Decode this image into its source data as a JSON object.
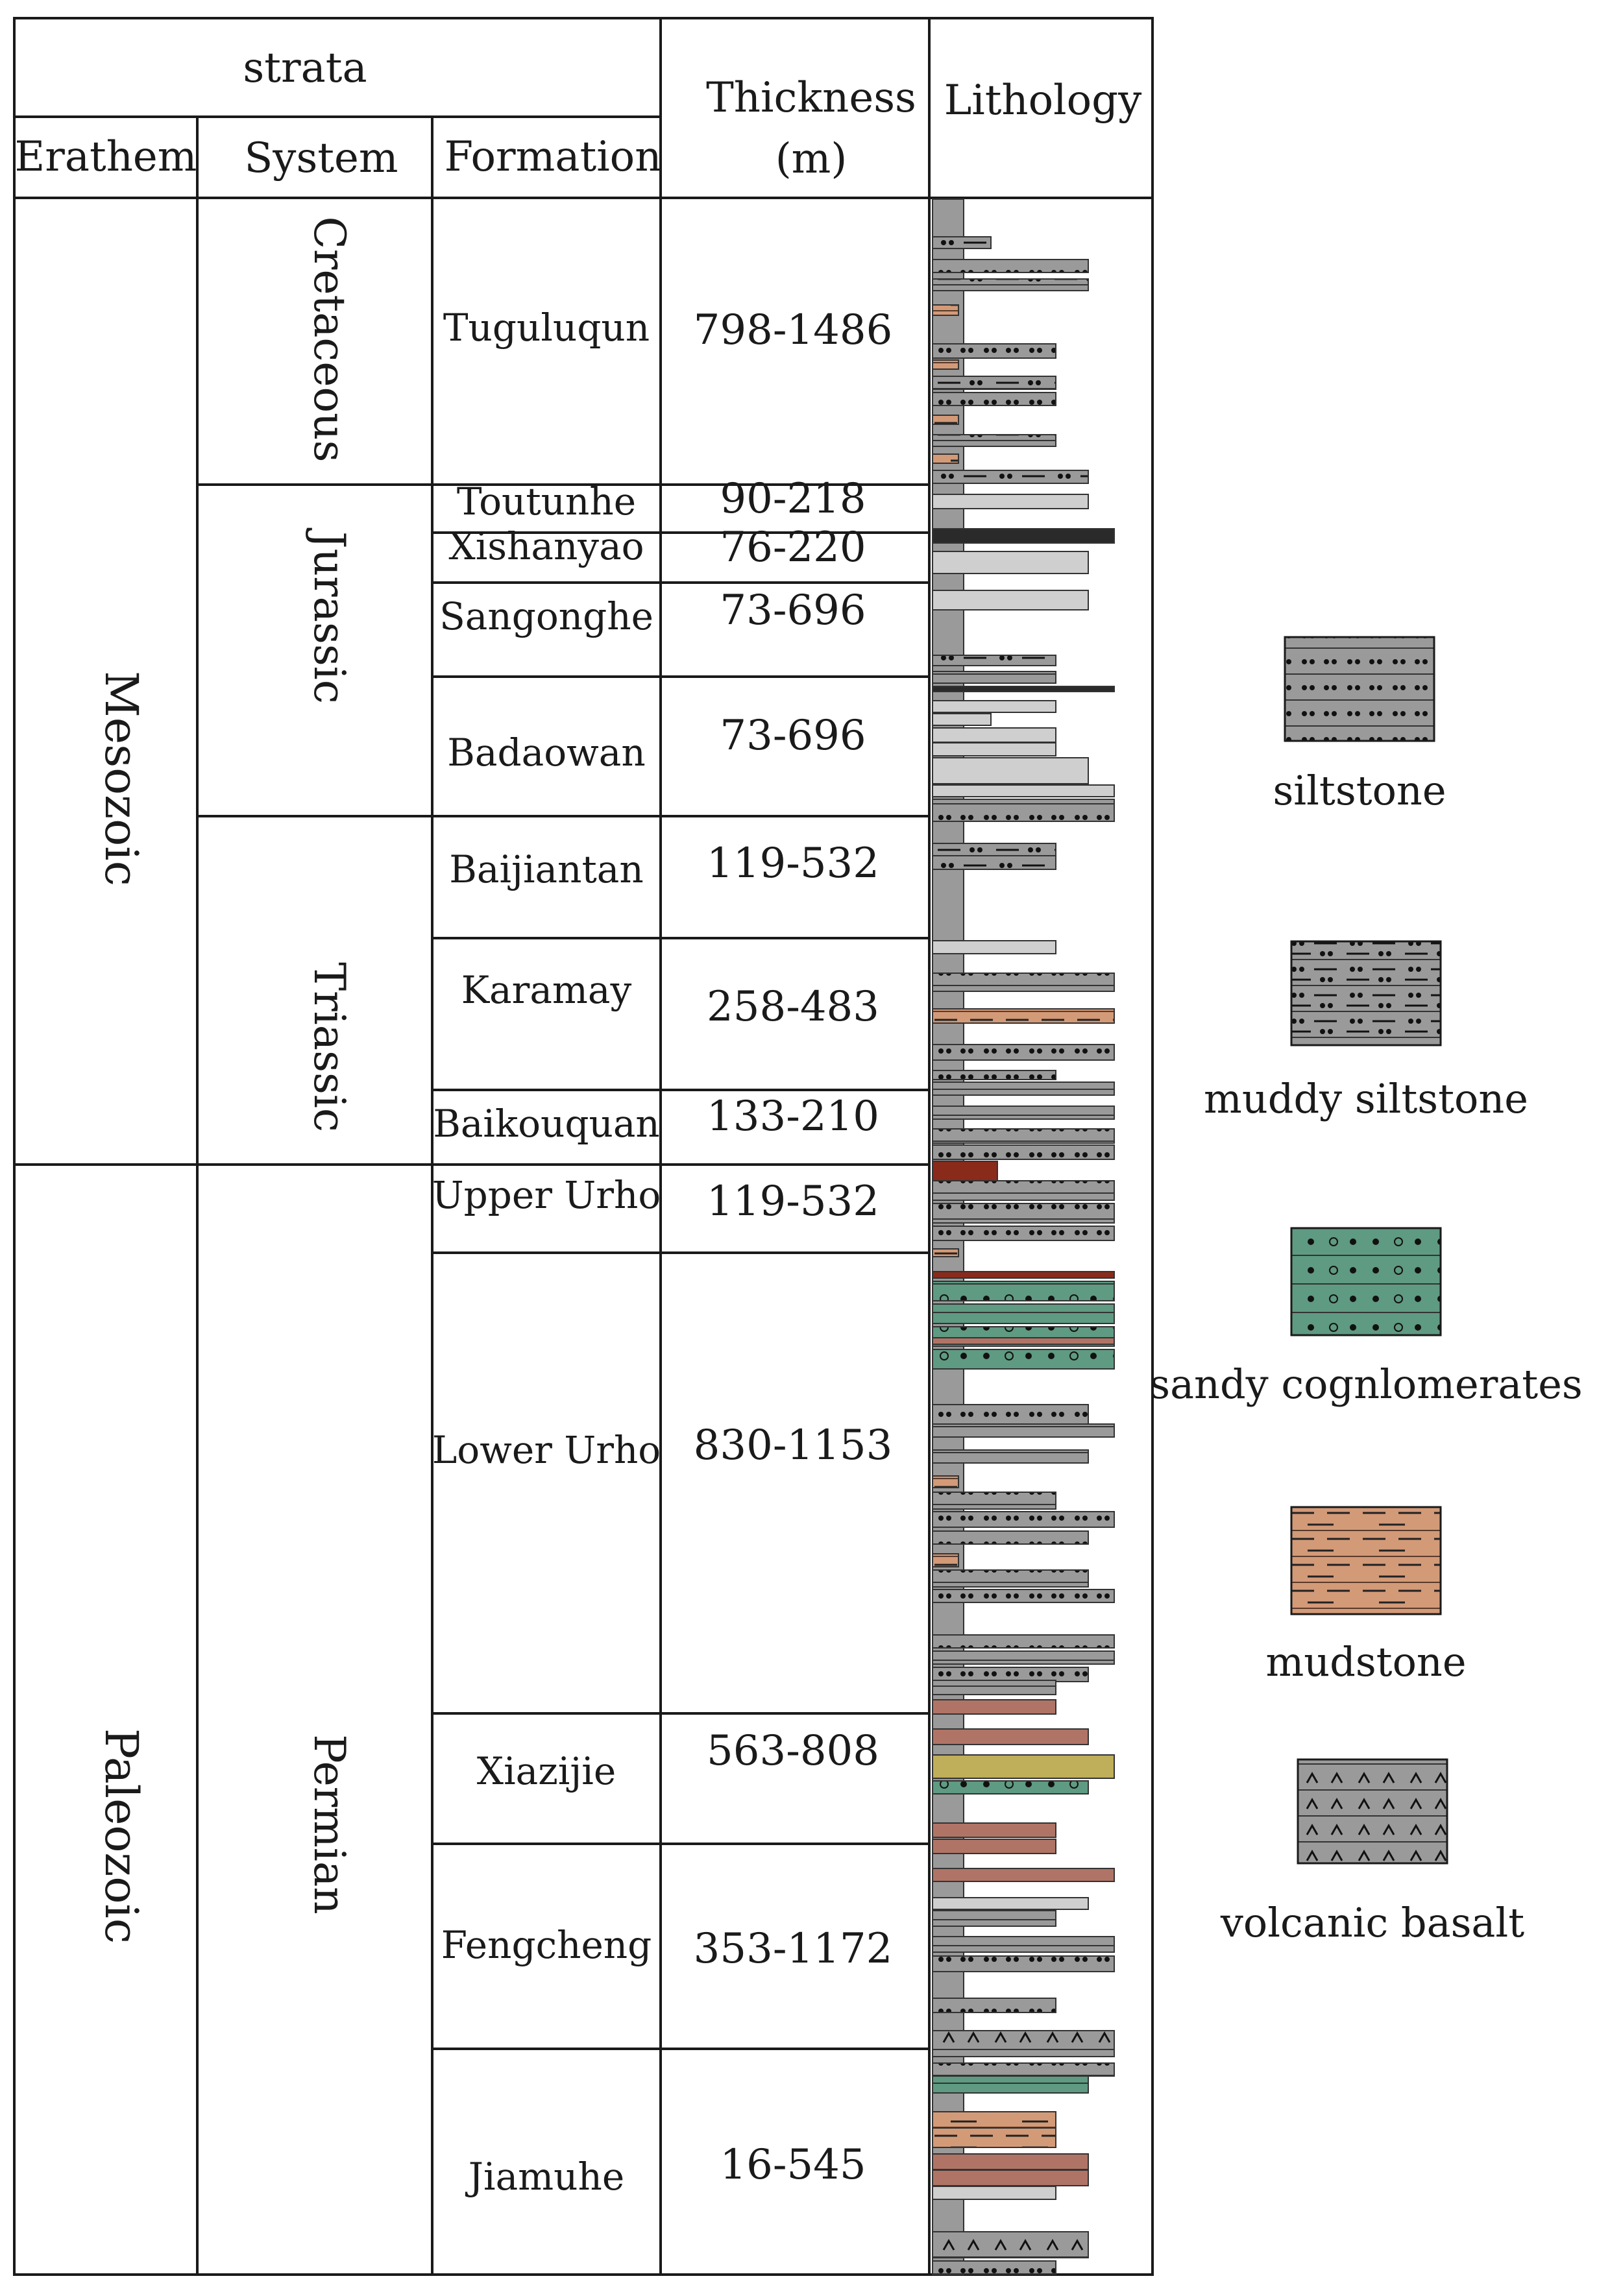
{
  "headers": {
    "strata": "strata",
    "erathem": "Erathem",
    "system": "System",
    "formation": "Formation",
    "thickness_line1": "Thickness",
    "thickness_line2": "(m)",
    "lithology": "Lithology"
  },
  "erathems": [
    {
      "name": "Mesozoic"
    },
    {
      "name": "Paleozoic"
    }
  ],
  "systems": [
    {
      "name": "Cretaceous"
    },
    {
      "name": "Jurassic"
    },
    {
      "name": "Triassic"
    },
    {
      "name": "Permian"
    }
  ],
  "formations": [
    {
      "name": "Tuguluqun",
      "thickness": "798-1486"
    },
    {
      "name": "Toutunhe",
      "thickness": "90-218"
    },
    {
      "name": "Xishanyao",
      "thickness": "76-220"
    },
    {
      "name": "Sangonghe",
      "thickness": "73-696"
    },
    {
      "name": "Badaowan",
      "thickness": "73-696"
    },
    {
      "name": "Baijiantan",
      "thickness": "119-532"
    },
    {
      "name": "Karamay",
      "thickness": "258-483"
    },
    {
      "name": "Baikouquan",
      "thickness": "133-210"
    },
    {
      "name": "Upper Urho",
      "thickness": "119-532"
    },
    {
      "name": "Lower Urho",
      "thickness": "830-1153"
    },
    {
      "name": "Xiazijie",
      "thickness": "563-808"
    },
    {
      "name": "Fengcheng",
      "thickness": "353-1172"
    },
    {
      "name": "Jiamuhe",
      "thickness": "16-545"
    }
  ],
  "legend": [
    {
      "label": "siltstone",
      "pattern": "siltstone"
    },
    {
      "label": "muddy siltstone",
      "pattern": "muddy"
    },
    {
      "label": "sandy cognlomerates",
      "pattern": "sandy"
    },
    {
      "label": "mudstone",
      "pattern": "mudstone"
    },
    {
      "label": "volcanic basalt",
      "pattern": "basalt"
    }
  ],
  "colors": {
    "siltstone": "#9a9a9a",
    "light_siltstone": "#cfcfcf",
    "sandy": "#5f9a82",
    "mudstone": "#d39a78",
    "red_mudstone": "#b07466",
    "dark_red": "#8a2a1a",
    "yellow": "#bfae5a",
    "coal": "#2a2a2a",
    "line": "#1a1a1a"
  }
}
